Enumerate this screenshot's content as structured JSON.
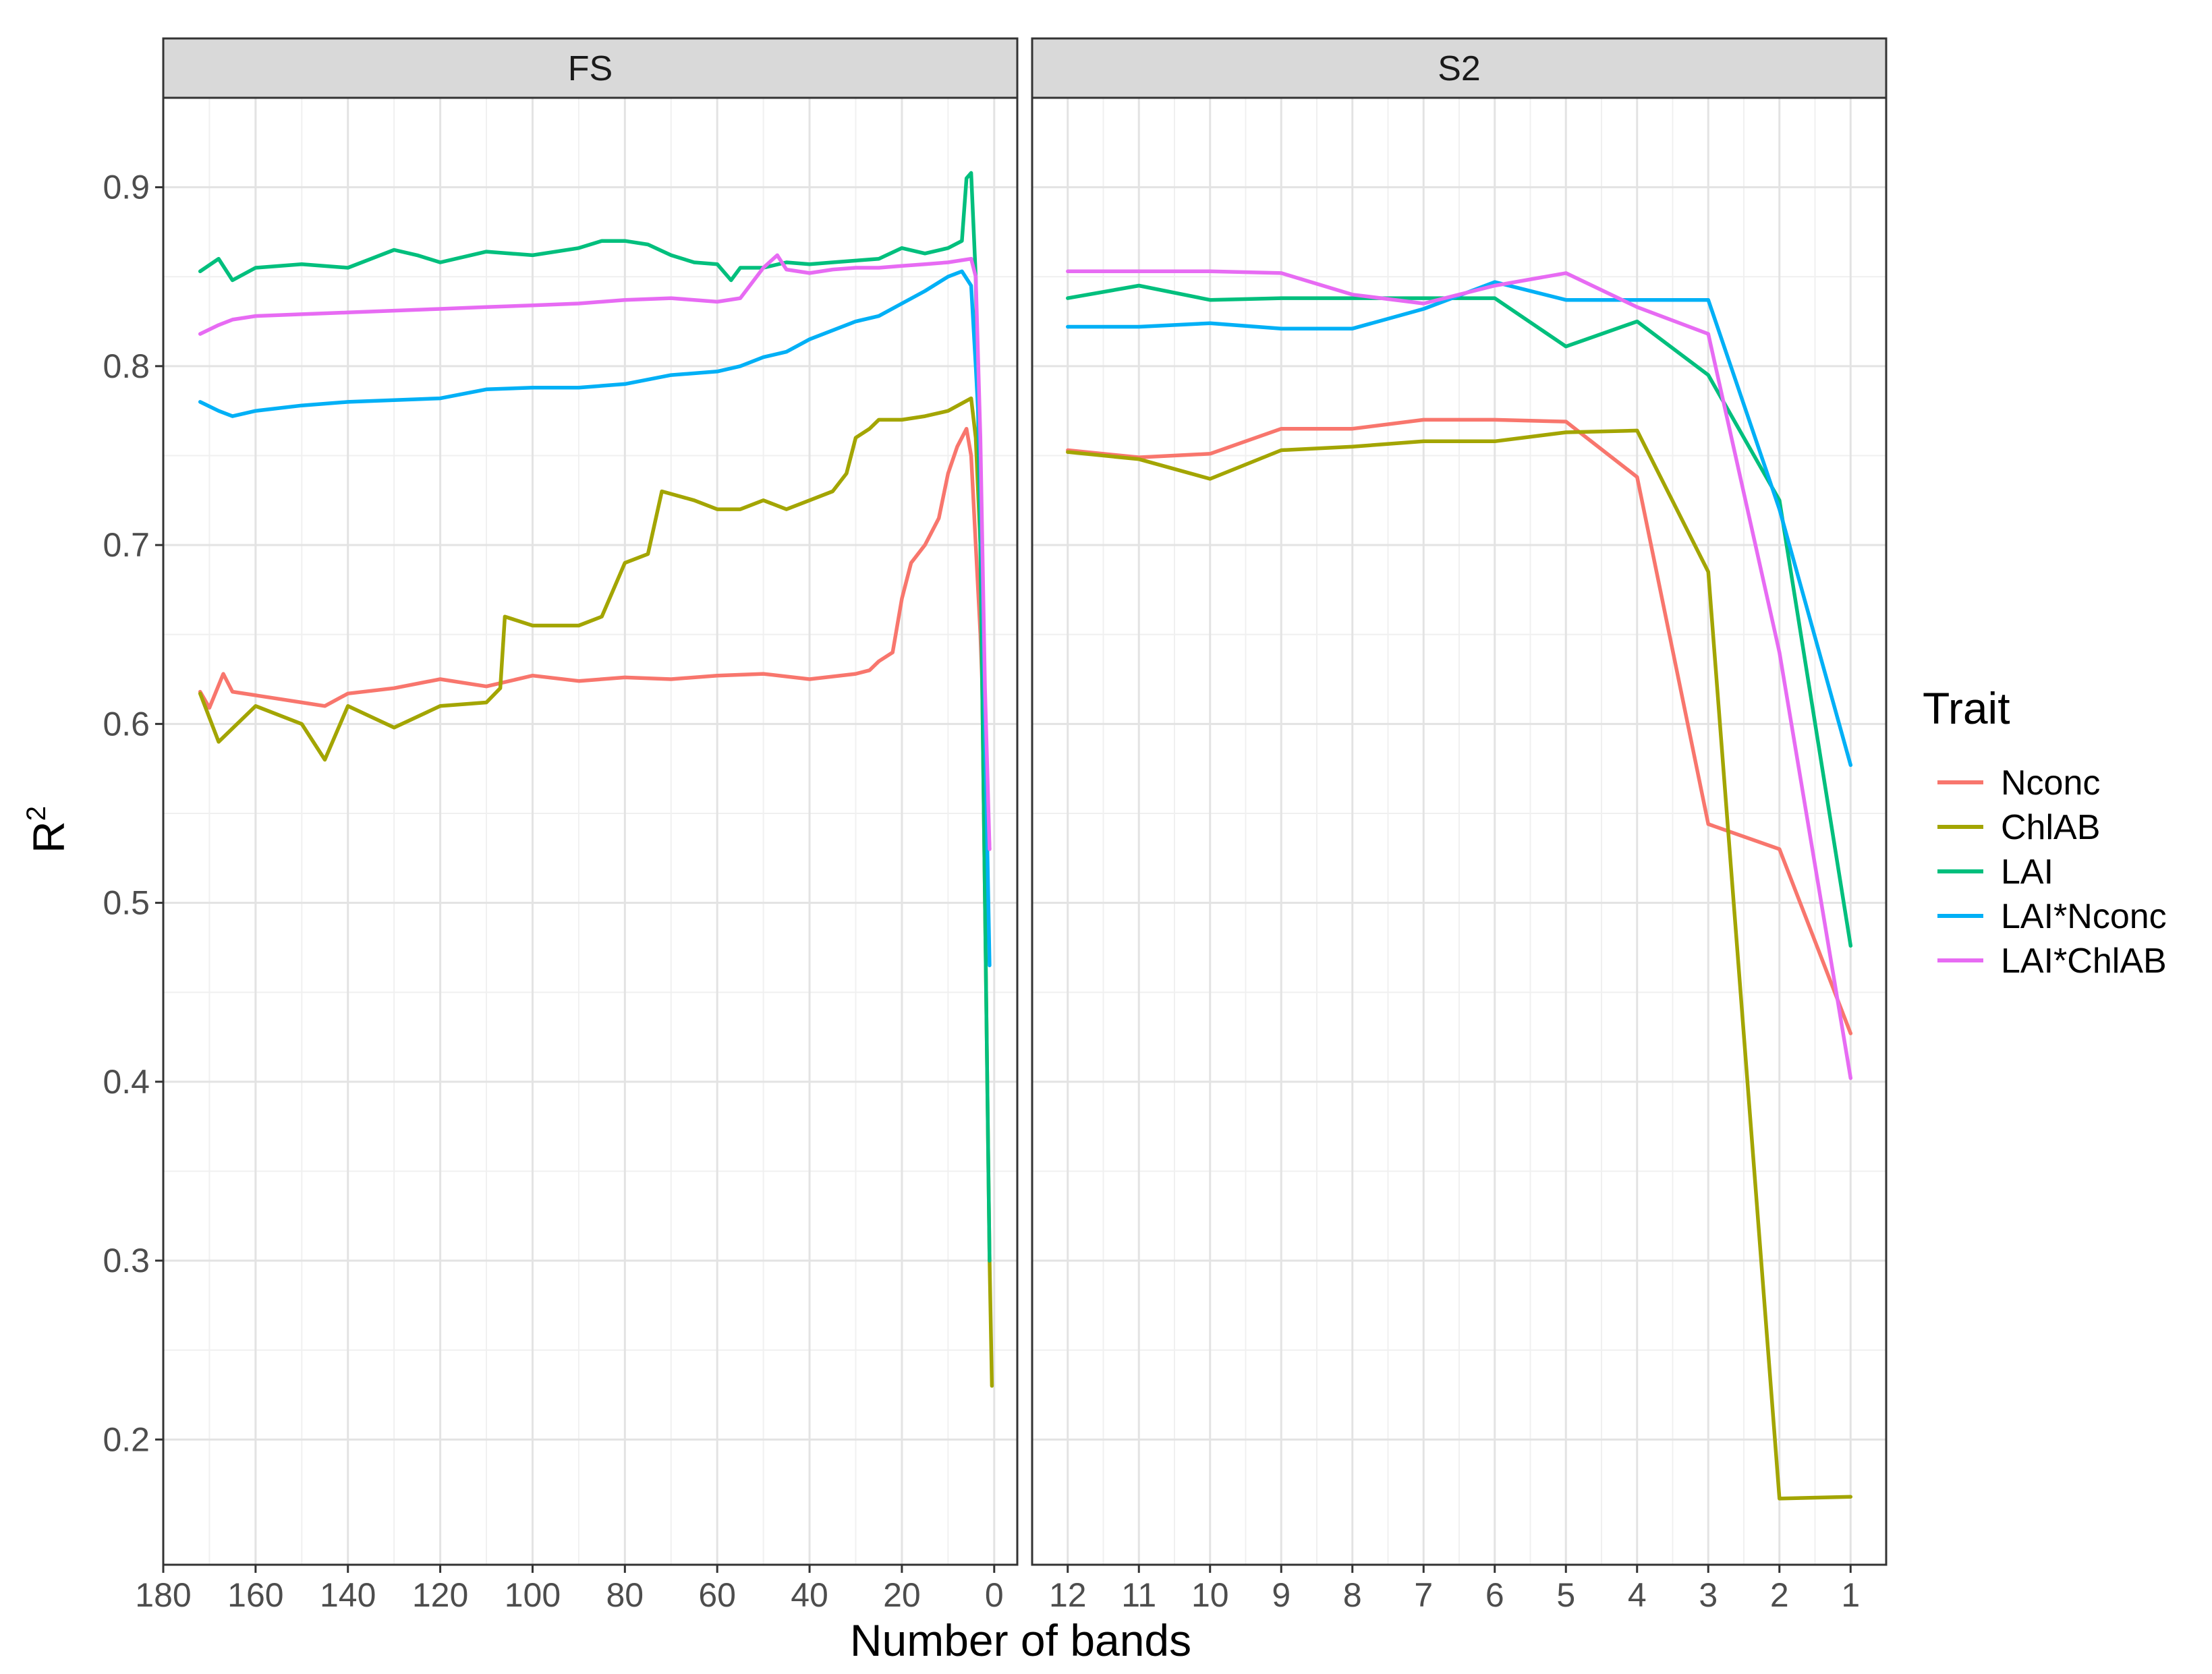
{
  "chart_data": {
    "type": "line",
    "ylabel": "R",
    "ylabel_superscript": "2",
    "xlabel": "Number of bands",
    "ylim": [
      0.13,
      0.95
    ],
    "y_ticks": [
      0.2,
      0.3,
      0.4,
      0.5,
      0.6,
      0.7,
      0.8,
      0.9
    ],
    "y_tick_labels": [
      "0.2",
      "0.3",
      "0.4",
      "0.5",
      "0.6",
      "0.7",
      "0.8",
      "0.9"
    ],
    "grid": true,
    "legend": {
      "title": "Trait",
      "placement": "right",
      "entries": [
        "Nconc",
        "ChlAB",
        "LAI",
        "LAI*Nconc",
        "LAI*ChlAB"
      ]
    },
    "colors": {
      "Nconc": "#F8766D",
      "ChlAB": "#A3A500",
      "LAI": "#00BF7D",
      "LAI*Nconc": "#00B0F6",
      "LAI*ChlAB": "#E76BF3"
    },
    "panels": [
      {
        "strip": "FS",
        "x_reversed": true,
        "xlim": [
          180,
          -5
        ],
        "x_ticks": [
          180,
          160,
          140,
          120,
          100,
          80,
          60,
          40,
          20,
          0
        ],
        "x_tick_labels": [
          "180",
          "160",
          "140",
          "120",
          "100",
          "80",
          "60",
          "40",
          "20",
          "0"
        ],
        "series": [
          {
            "name": "Nconc",
            "x": [
              172,
              170,
              167,
              165,
              160,
              155,
              150,
              145,
              140,
              130,
              120,
              110,
              100,
              90,
              80,
              70,
              60,
              50,
              40,
              30,
              27,
              25,
              22,
              20,
              18,
              15,
              12,
              10,
              8,
              6,
              5,
              4,
              3,
              2,
              1
            ],
            "y": [
              0.618,
              0.609,
              0.628,
              0.618,
              0.616,
              0.614,
              0.612,
              0.61,
              0.617,
              0.62,
              0.625,
              0.621,
              0.627,
              0.624,
              0.626,
              0.625,
              0.627,
              0.628,
              0.625,
              0.628,
              0.63,
              0.635,
              0.64,
              0.67,
              0.69,
              0.7,
              0.715,
              0.74,
              0.755,
              0.765,
              0.75,
              0.7,
              0.65,
              0.58,
              0.53
            ]
          },
          {
            "name": "ChlAB",
            "x": [
              172,
              168,
              160,
              150,
              145,
              140,
              130,
              120,
              110,
              107,
              106,
              100,
              90,
              85,
              80,
              75,
              72,
              65,
              60,
              55,
              50,
              45,
              40,
              35,
              32,
              30,
              27,
              25,
              20,
              15,
              10,
              5,
              4,
              3,
              2,
              1,
              0.5
            ],
            "y": [
              0.617,
              0.59,
              0.61,
              0.6,
              0.58,
              0.61,
              0.598,
              0.61,
              0.612,
              0.62,
              0.66,
              0.655,
              0.655,
              0.66,
              0.69,
              0.695,
              0.73,
              0.725,
              0.72,
              0.72,
              0.725,
              0.72,
              0.725,
              0.73,
              0.74,
              0.76,
              0.765,
              0.77,
              0.77,
              0.772,
              0.775,
              0.782,
              0.76,
              0.7,
              0.5,
              0.3,
              0.23
            ]
          },
          {
            "name": "LAI",
            "x": [
              172,
              168,
              165,
              160,
              150,
              140,
              130,
              125,
              120,
              110,
              100,
              90,
              85,
              80,
              75,
              70,
              65,
              60,
              57,
              55,
              50,
              45,
              40,
              35,
              30,
              25,
              20,
              15,
              10,
              7,
              6,
              5,
              4,
              3,
              2,
              1
            ],
            "y": [
              0.853,
              0.86,
              0.848,
              0.855,
              0.857,
              0.855,
              0.865,
              0.862,
              0.858,
              0.864,
              0.862,
              0.866,
              0.87,
              0.87,
              0.868,
              0.862,
              0.858,
              0.857,
              0.848,
              0.855,
              0.855,
              0.858,
              0.857,
              0.858,
              0.859,
              0.86,
              0.866,
              0.863,
              0.866,
              0.87,
              0.905,
              0.908,
              0.85,
              0.7,
              0.5,
              0.3
            ]
          },
          {
            "name": "LAI*Nconc",
            "x": [
              172,
              168,
              165,
              160,
              150,
              140,
              130,
              120,
              110,
              100,
              90,
              80,
              70,
              60,
              55,
              50,
              45,
              40,
              35,
              30,
              25,
              20,
              15,
              10,
              7,
              5,
              4,
              3,
              2,
              1
            ],
            "y": [
              0.78,
              0.775,
              0.772,
              0.775,
              0.778,
              0.78,
              0.781,
              0.782,
              0.787,
              0.788,
              0.788,
              0.79,
              0.795,
              0.797,
              0.8,
              0.805,
              0.808,
              0.815,
              0.82,
              0.825,
              0.828,
              0.835,
              0.842,
              0.85,
              0.853,
              0.845,
              0.8,
              0.75,
              0.6,
              0.465
            ]
          },
          {
            "name": "LAI*ChlAB",
            "x": [
              172,
              168,
              165,
              160,
              150,
              140,
              130,
              120,
              110,
              100,
              90,
              80,
              70,
              60,
              55,
              50,
              47,
              45,
              40,
              35,
              30,
              25,
              20,
              15,
              10,
              5,
              4,
              3,
              2,
              1
            ],
            "y": [
              0.818,
              0.823,
              0.826,
              0.828,
              0.829,
              0.83,
              0.831,
              0.832,
              0.833,
              0.834,
              0.835,
              0.837,
              0.838,
              0.836,
              0.838,
              0.855,
              0.862,
              0.854,
              0.852,
              0.854,
              0.855,
              0.855,
              0.856,
              0.857,
              0.858,
              0.86,
              0.85,
              0.76,
              0.62,
              0.53
            ]
          }
        ]
      },
      {
        "strip": "S2",
        "x_reversed": true,
        "xlim": [
          12.5,
          0.5
        ],
        "x_ticks": [
          12,
          11,
          10,
          9,
          8,
          7,
          6,
          5,
          4,
          3,
          2,
          1
        ],
        "x_tick_labels": [
          "12",
          "11",
          "10",
          "9",
          "8",
          "7",
          "6",
          "5",
          "4",
          "3",
          "2",
          "1"
        ],
        "series": [
          {
            "name": "Nconc",
            "x": [
              12,
              11,
              10,
              9,
              8,
              7,
              6,
              5,
              4,
              3,
              2,
              1
            ],
            "y": [
              0.753,
              0.749,
              0.751,
              0.765,
              0.765,
              0.77,
              0.77,
              0.769,
              0.738,
              0.544,
              0.53,
              0.427
            ]
          },
          {
            "name": "ChlAB",
            "x": [
              12,
              11,
              10,
              9,
              8,
              7,
              6,
              5,
              4,
              3,
              2,
              1
            ],
            "y": [
              0.752,
              0.748,
              0.737,
              0.753,
              0.755,
              0.758,
              0.758,
              0.763,
              0.764,
              0.685,
              0.167,
              0.168
            ]
          },
          {
            "name": "LAI",
            "x": [
              12,
              11,
              10,
              9,
              8,
              7,
              6,
              5,
              4,
              3,
              2,
              1
            ],
            "y": [
              0.838,
              0.845,
              0.837,
              0.838,
              0.838,
              0.838,
              0.838,
              0.811,
              0.825,
              0.795,
              0.725,
              0.476
            ]
          },
          {
            "name": "LAI*Nconc",
            "x": [
              12,
              11,
              10,
              9,
              8,
              7,
              6,
              5,
              4,
              3,
              2,
              1
            ],
            "y": [
              0.822,
              0.822,
              0.824,
              0.821,
              0.821,
              0.832,
              0.847,
              0.837,
              0.837,
              0.837,
              0.72,
              0.577
            ]
          },
          {
            "name": "LAI*ChlAB",
            "x": [
              12,
              11,
              10,
              9,
              8,
              7,
              6,
              5,
              4,
              3,
              2,
              1
            ],
            "y": [
              0.853,
              0.853,
              0.853,
              0.852,
              0.84,
              0.835,
              0.845,
              0.852,
              0.833,
              0.818,
              0.64,
              0.402
            ]
          }
        ]
      }
    ]
  }
}
